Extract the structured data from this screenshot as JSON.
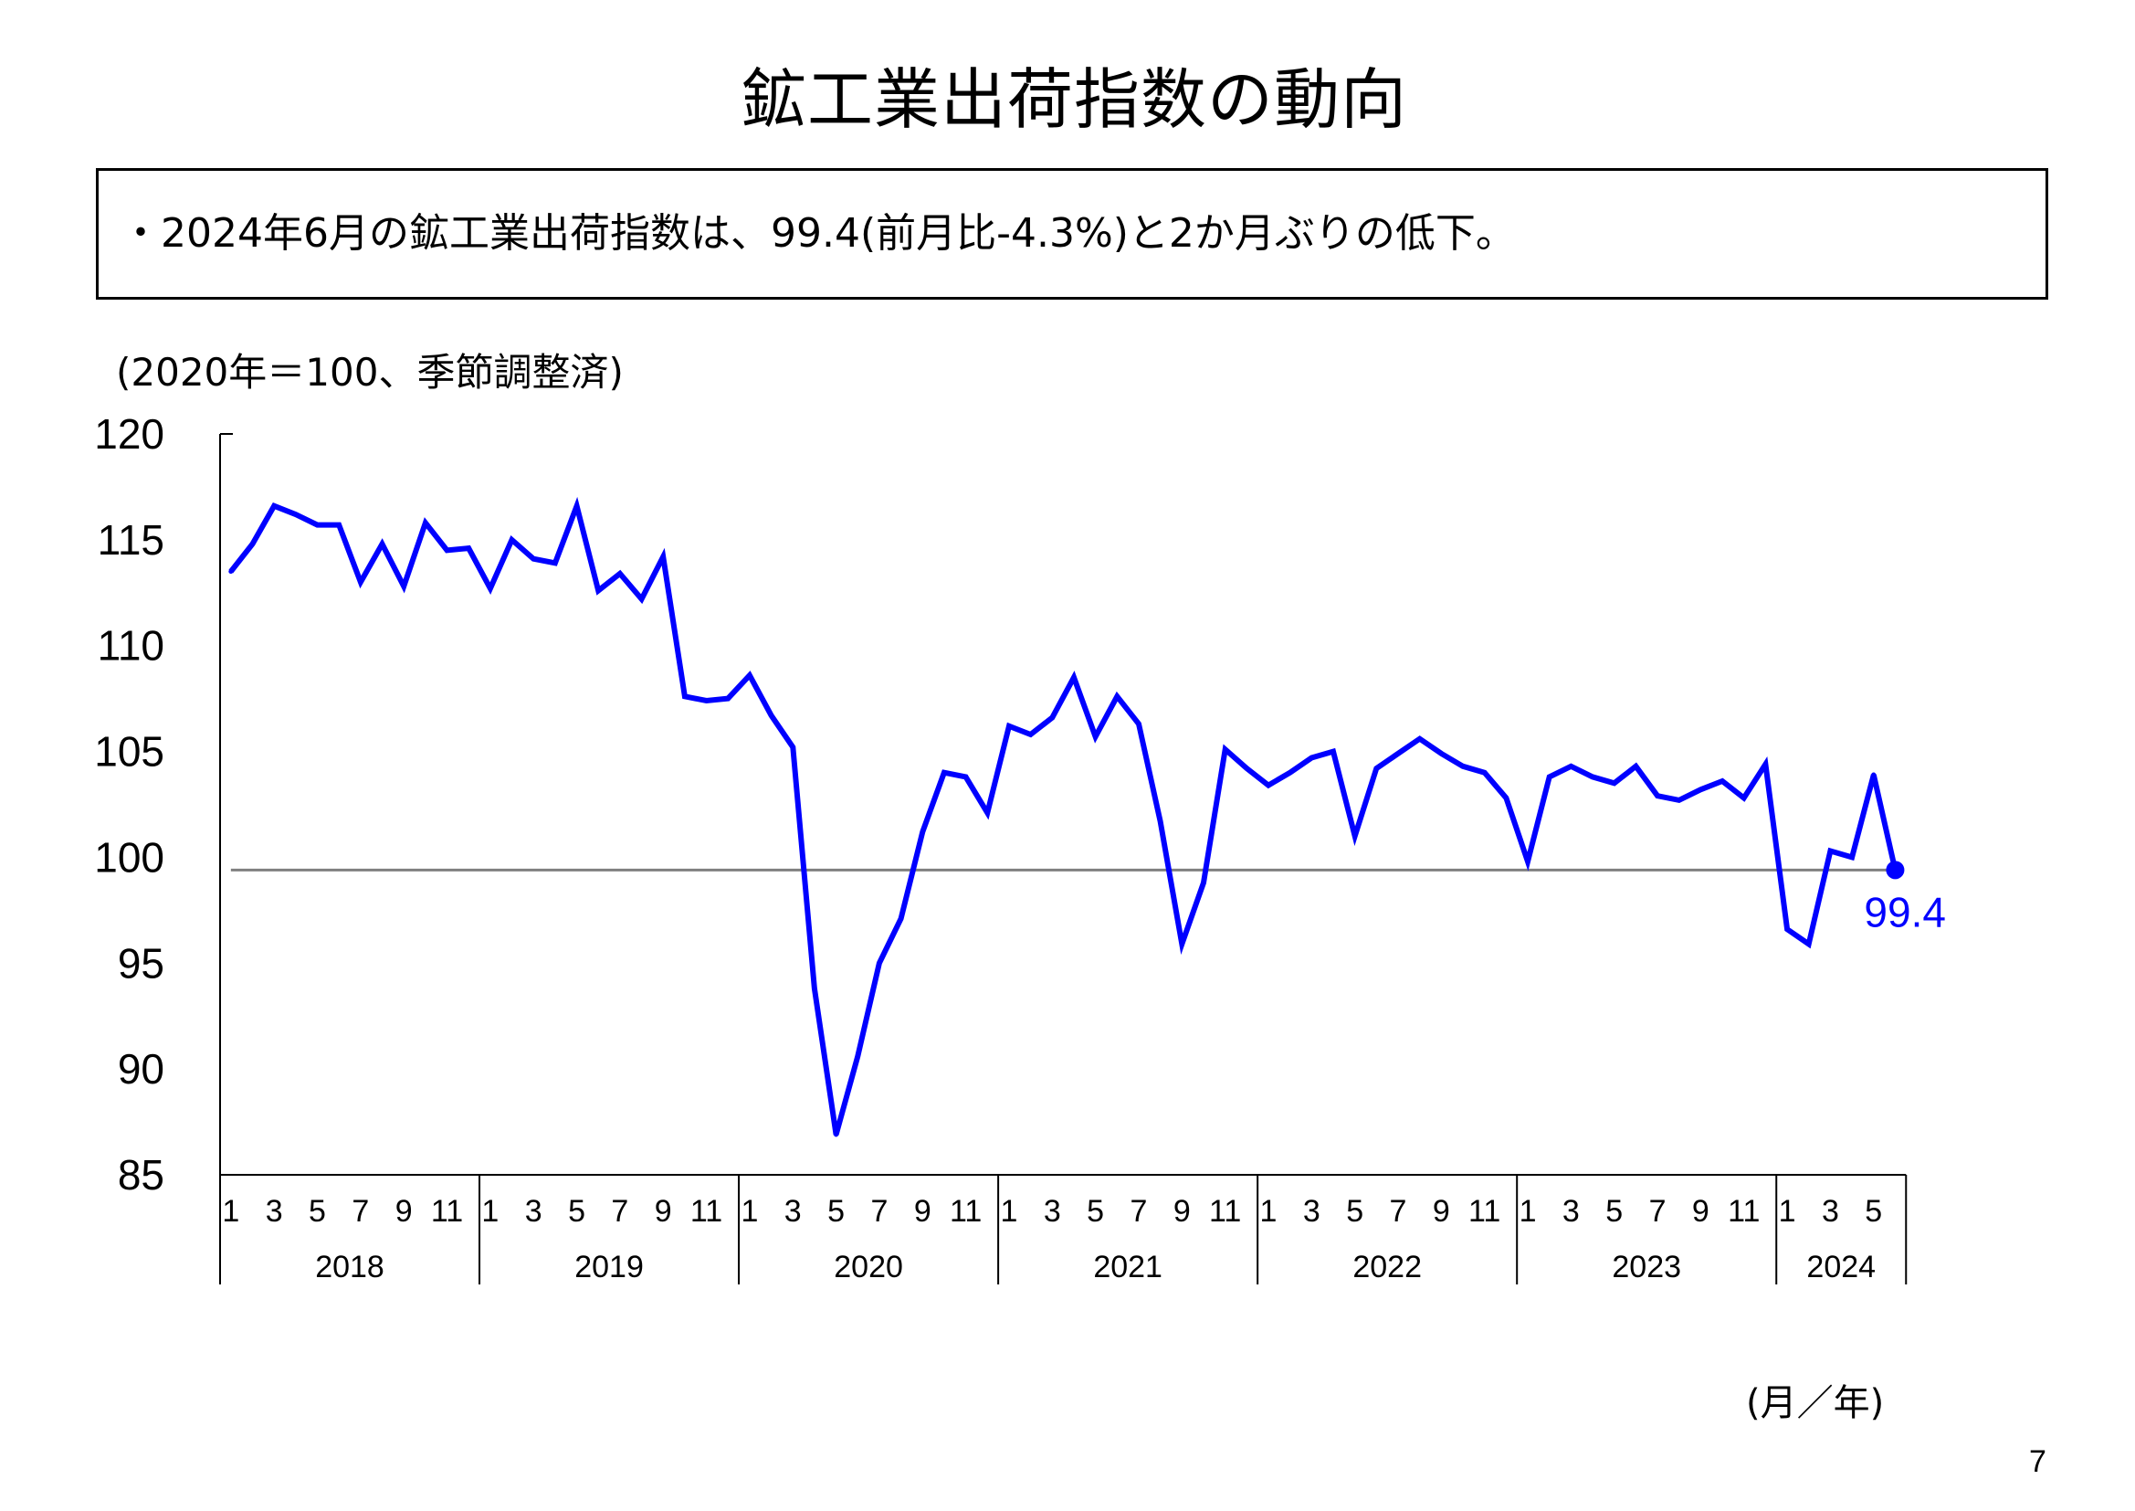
{
  "slide": {
    "summary": "・2024年6月の鉱工業出荷指数は、99.4(前月比-4.3%)と2か月ぶりの低下。",
    "page_number": "7"
  },
  "chart_data": {
    "type": "line",
    "title": "鉱工業出荷指数の動向",
    "ylabel": "(2020年＝100、季節調整済)",
    "xlabel": "(月／年)",
    "ylim": [
      85,
      120
    ],
    "yticks": [
      120,
      115,
      110,
      105,
      100,
      95,
      90,
      85
    ],
    "grid": false,
    "legend": "none",
    "line_color": "#0000FF",
    "reference_color": "#808080",
    "reference_value": 99.4,
    "latest_label": "99.4",
    "groups": [
      {
        "year": "2018",
        "month_ticks": [
          "1",
          "3",
          "5",
          "7",
          "9",
          "11"
        ],
        "values": [
          113.5,
          114.8,
          116.6,
          116.2,
          115.7,
          115.7,
          113.0,
          114.8,
          112.8,
          115.8,
          114.5,
          114.6
        ]
      },
      {
        "year": "2019",
        "month_ticks": [
          "1",
          "3",
          "5",
          "7",
          "9",
          "11"
        ],
        "values": [
          112.7,
          115.0,
          114.1,
          113.9,
          116.6,
          112.6,
          113.4,
          112.2,
          114.2,
          107.6,
          107.4,
          107.5
        ]
      },
      {
        "year": "2020",
        "month_ticks": [
          "1",
          "3",
          "5",
          "7",
          "9",
          "11"
        ],
        "values": [
          108.6,
          106.7,
          105.2,
          93.8,
          86.9,
          90.6,
          95.0,
          97.1,
          101.2,
          104.0,
          103.8,
          102.1
        ]
      },
      {
        "year": "2021",
        "month_ticks": [
          "1",
          "3",
          "5",
          "7",
          "9",
          "11"
        ],
        "values": [
          106.2,
          105.8,
          106.6,
          108.5,
          105.7,
          107.6,
          106.3,
          101.7,
          95.9,
          98.8,
          105.1,
          104.2
        ]
      },
      {
        "year": "2022",
        "month_ticks": [
          "1",
          "3",
          "5",
          "7",
          "9",
          "11"
        ],
        "values": [
          103.4,
          104.0,
          104.7,
          105.0,
          101.0,
          104.2,
          104.9,
          105.6,
          104.9,
          104.3,
          104.0,
          102.8
        ]
      },
      {
        "year": "2023",
        "month_ticks": [
          "1",
          "3",
          "5",
          "7",
          "9",
          "11"
        ],
        "values": [
          99.8,
          103.8,
          104.3,
          103.8,
          103.5,
          104.3,
          102.9,
          102.7,
          103.2,
          103.6,
          102.8,
          104.4
        ]
      },
      {
        "year": "2024",
        "month_ticks": [
          "1",
          "3",
          "5"
        ],
        "values": [
          96.6,
          95.9,
          100.3,
          100.0,
          103.9,
          99.4
        ]
      }
    ]
  }
}
